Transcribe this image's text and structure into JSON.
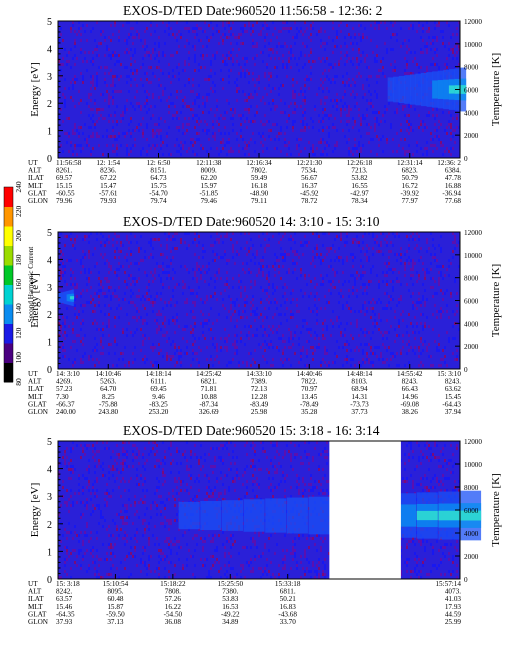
{
  "chart_data": [
    {
      "type": "heatmap",
      "title": "EXOS-D/TED   Date:960520  11:56:58 - 12:36: 2",
      "ylabel": "Energy [eV]",
      "y2label": "Temperature [K]",
      "ylim": [
        0,
        5
      ],
      "y2lim": [
        0,
        12000
      ],
      "yticks": [
        "0",
        "1",
        "2",
        "3",
        "4",
        "5"
      ],
      "y2ticks": [
        "0",
        "2000",
        "4000",
        "6000",
        "8000",
        "10000",
        "12000"
      ],
      "rows": [
        {
          "label": "UT",
          "values": [
            "11:56:58",
            "12: 1:54",
            "12: 6:50",
            "12:11:38",
            "12:16:34",
            "12:21:30",
            "12:26:18",
            "12:31:14",
            "12:36: 2"
          ]
        },
        {
          "label": "ALT",
          "values": [
            "8261.",
            "8236.",
            "8151.",
            "8009.",
            "7802.",
            "7534.",
            "7213.",
            "6823.",
            "6384."
          ]
        },
        {
          "label": "ILAT",
          "values": [
            "69.57",
            "67.22",
            "64.73",
            "62.20",
            "59.49",
            "56.67",
            "53.82",
            "50.79",
            "47.78"
          ]
        },
        {
          "label": "MLT",
          "values": [
            "15.15",
            "15.47",
            "15.75",
            "15.97",
            "16.18",
            "16.37",
            "16.55",
            "16.72",
            "16.88"
          ]
        },
        {
          "label": "GLAT",
          "values": [
            "-60.55",
            "-57.61",
            "-54.70",
            "-51.85",
            "-48.90",
            "-45.92",
            "-42.97",
            "-39.92",
            "-36.94"
          ]
        },
        {
          "label": "GLON",
          "values": [
            "79.96",
            "79.93",
            "79.74",
            "79.46",
            "79.11",
            "78.72",
            "78.34",
            "77.97",
            "77.68"
          ]
        }
      ],
      "enhancement": {
        "x_fraction": [
          0.82,
          1.0
        ],
        "energy_center": 2.5,
        "energy_halfwidth": 0.8
      }
    },
    {
      "type": "heatmap",
      "title": "EXOS-D/TED   Date:960520  14: 3:10 - 15: 3:10",
      "ylabel": "Energy [eV]",
      "y2label": "Temperature [K]",
      "ylim": [
        0,
        5
      ],
      "y2lim": [
        0,
        12000
      ],
      "yticks": [
        "0",
        "1",
        "2",
        "3",
        "4",
        "5"
      ],
      "y2ticks": [
        "0",
        "2000",
        "4000",
        "6000",
        "8000",
        "10000",
        "12000"
      ],
      "rows": [
        {
          "label": "UT",
          "values": [
            "14: 3:10",
            "14:10:46",
            "14:18:14",
            "14:25:42",
            "14:33:10",
            "14:40:46",
            "14:48:14",
            "14:55:42",
            "15: 3:10"
          ]
        },
        {
          "label": "ALT",
          "values": [
            "4269.",
            "5263.",
            "6111.",
            "6821.",
            "7389.",
            "7822.",
            "8103.",
            "8243.",
            "8243."
          ]
        },
        {
          "label": "ILAT",
          "values": [
            "57.23",
            "64.70",
            "69.45",
            "71.81",
            "72.13",
            "70.97",
            "68.94",
            "66.43",
            "63.62"
          ]
        },
        {
          "label": "MLT",
          "values": [
            "7.30",
            "8.25",
            "9.46",
            "10.88",
            "12.28",
            "13.45",
            "14.31",
            "14.96",
            "15.45"
          ]
        },
        {
          "label": "GLAT",
          "values": [
            "-66.37",
            "-75.88",
            "-83.25",
            "-87.34",
            "-83.49",
            "-78.49",
            "-73.73",
            "-69.08",
            "-64.43"
          ]
        },
        {
          "label": "GLON",
          "values": [
            "240.00",
            "243.80",
            "253.20",
            "326.69",
            "25.98",
            "35.28",
            "37.73",
            "38.26",
            "37.94"
          ]
        }
      ],
      "enhancement": {
        "x_fraction": [
          0.0,
          0.035
        ],
        "energy_center": 2.6,
        "energy_halfwidth": 0.3
      }
    },
    {
      "type": "heatmap",
      "title": "EXOS-D/TED   Date:960520  15: 3:18 - 16: 3:14",
      "ylabel": "Energy [eV]",
      "y2label": "Temperature [K]",
      "ylim": [
        0,
        5
      ],
      "y2lim": [
        0,
        12000
      ],
      "yticks": [
        "0",
        "1",
        "2",
        "3",
        "4",
        "5"
      ],
      "y2ticks": [
        "0",
        "2000",
        "4000",
        "6000",
        "8000",
        "10000",
        "12000"
      ],
      "data_gap": {
        "x_fraction": [
          0.675,
          0.853
        ]
      },
      "rows": [
        {
          "label": "UT",
          "values": [
            "15: 3:18",
            "15:10:54",
            "15:18:22",
            "15:25:50",
            "15:33:18",
            "",
            "",
            "15:57:14"
          ]
        },
        {
          "label": "ALT",
          "values": [
            "8242.",
            "8095.",
            "7808.",
            "7380.",
            "6811.",
            "",
            "",
            "4073."
          ]
        },
        {
          "label": "ILAT",
          "values": [
            "63.57",
            "60.48",
            "57.26",
            "53.83",
            "50.21",
            "",
            "",
            "41.03"
          ]
        },
        {
          "label": "MLT",
          "values": [
            "15.46",
            "15.87",
            "16.22",
            "16.53",
            "16.83",
            "",
            "",
            "17.93"
          ]
        },
        {
          "label": "GLAT",
          "values": [
            "-64.35",
            "-59.50",
            "-54.50",
            "-49.22",
            "-43.68",
            "",
            "",
            "44.59"
          ]
        },
        {
          "label": "GLON",
          "values": [
            "37.93",
            "37.13",
            "36.08",
            "34.89",
            "33.70",
            "",
            "",
            "25.99"
          ]
        }
      ],
      "enhancement": {
        "x_fraction": [
          0.3,
          1.0
        ],
        "energy_center": 2.3,
        "energy_halfwidth": 0.9
      }
    }
  ],
  "colorbar": {
    "label": "Second Harmonic Current",
    "ticks": [
      "80",
      "100",
      "120",
      "140",
      "160",
      "180",
      "200",
      "220",
      "240"
    ],
    "colors": [
      "#000000",
      "#4a0080",
      "#1a1ae6",
      "#0a8cf0",
      "#00d2d2",
      "#00c828",
      "#9bdc00",
      "#ffff00",
      "#ff9600",
      "#ff0000"
    ]
  }
}
